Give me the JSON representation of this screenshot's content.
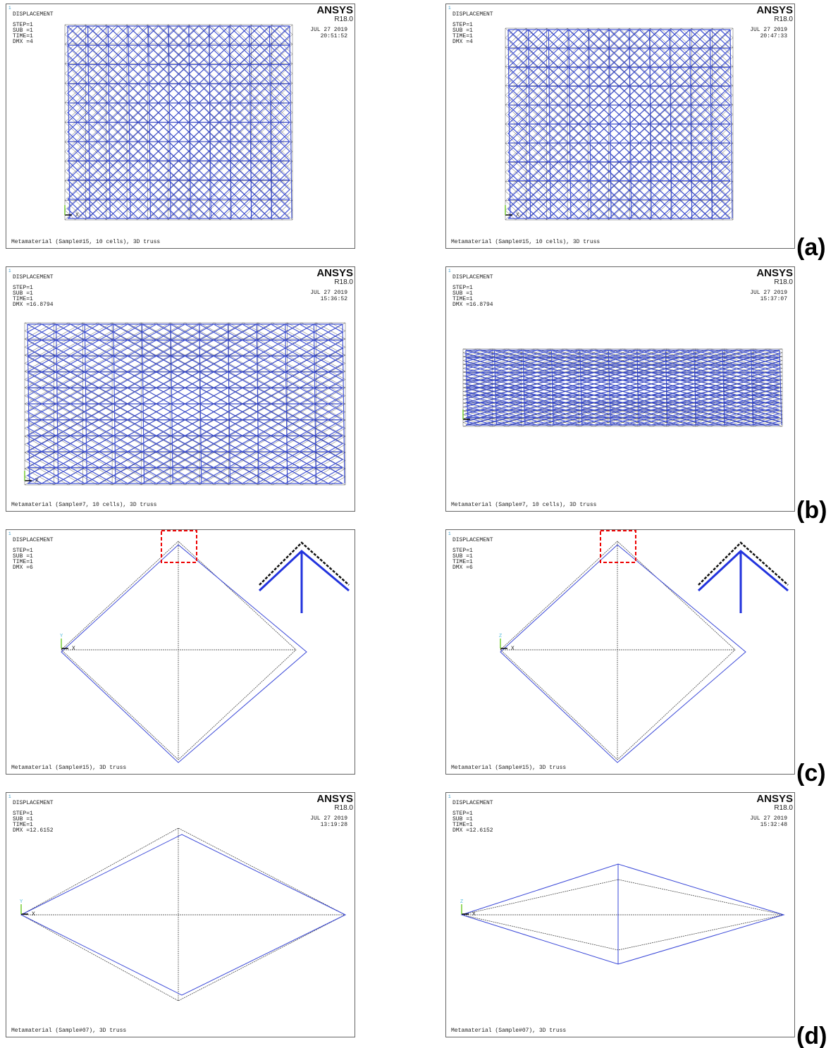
{
  "panels": [
    {
      "window": "1",
      "title": "DISPLACEMENT",
      "lines": [
        "STEP=1",
        "SUB =1",
        "TIME=1",
        "DMX =4"
      ],
      "logo": "ANSYS",
      "version": "R18.0",
      "date": "JUL 27 2019",
      "time": "20:51:52",
      "axis_x": "X",
      "caption": "Metamaterial (Sample#15, 10 cells), 3D truss"
    },
    {
      "window": "1",
      "title": "DISPLACEMENT",
      "lines": [
        "STEP=1",
        "SUB =1",
        "TIME=1",
        "DMX =4"
      ],
      "logo": "ANSYS",
      "version": "R18.0",
      "date": "JUL 27 2019",
      "time": "20:47:33",
      "axis_x": "X",
      "caption": "Metamaterial (Sample#15, 10 cells), 3D truss"
    },
    {
      "window": "1",
      "title": "DISPLACEMENT",
      "lines": [
        "STEP=1",
        "SUB =1",
        "TIME=1",
        "DMX =16.8794"
      ],
      "logo": "ANSYS",
      "version": "R18.0",
      "date": "JUL 27 2019",
      "time": "15:36:52",
      "axis_x": "X",
      "caption": "Metamaterial (Sample#7, 10 cells), 3D truss"
    },
    {
      "window": "1",
      "title": "DISPLACEMENT",
      "lines": [
        "STEP=1",
        "SUB =1",
        "TIME=1",
        "DMX =16.8794"
      ],
      "logo": "ANSYS",
      "version": "R18.0",
      "date": "JUL 27 2019",
      "time": "15:37:07",
      "caption": "Metamaterial (Sample#7, 10 cells), 3D truss"
    },
    {
      "window": "1",
      "title": "DISPLACEMENT",
      "lines": [
        "STEP=1",
        "SUB =1",
        "TIME=1",
        "DMX =6"
      ],
      "axis_x": "X",
      "axis_v": "Y",
      "caption": "Metamaterial (Sample#15), 3D truss"
    },
    {
      "window": "1",
      "title": "DISPLACEMENT",
      "lines": [
        "STEP=1",
        "SUB =1",
        "TIME=1",
        "DMX =6"
      ],
      "axis_x": "X",
      "axis_v": "Z",
      "caption": "Metamaterial (Sample#15), 3D truss"
    },
    {
      "window": "1",
      "title": "DISPLACEMENT",
      "lines": [
        "STEP=1",
        "SUB =1",
        "TIME=1",
        "DMX =12.6152"
      ],
      "logo": "ANSYS",
      "version": "R18.0",
      "date": "JUL 27 2019",
      "time": "13:19:28",
      "axis_x": "X",
      "axis_v": "Y",
      "caption": "Metamaterial (Sample#07), 3D truss"
    },
    {
      "window": "1",
      "title": "DISPLACEMENT",
      "lines": [
        "STEP=1",
        "SUB =1",
        "TIME=1",
        "DMX =12.6152"
      ],
      "logo": "ANSYS",
      "version": "R18.0",
      "date": "JUL 27 2019",
      "time": "15:32:48",
      "axis_x": "X",
      "axis_v": "Z",
      "caption": "Metamaterial (Sample#07), 3D truss"
    }
  ],
  "row_labels": [
    "(a)",
    "(b)",
    "(c)",
    "(d)"
  ]
}
